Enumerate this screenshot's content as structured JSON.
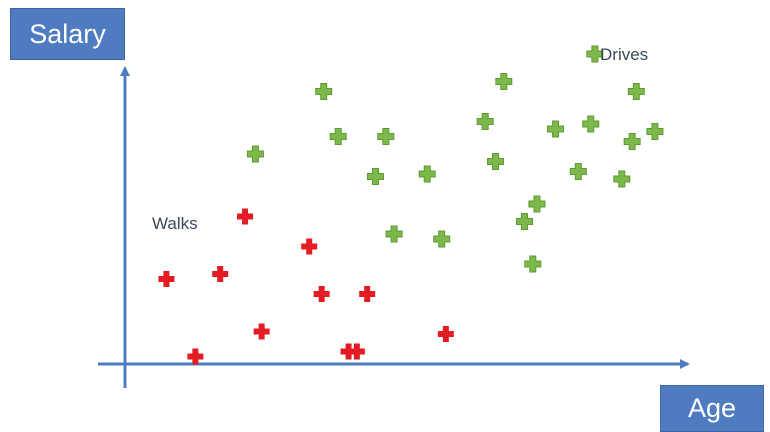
{
  "colors": {
    "axis": "#4f7cc0",
    "walks": "#e31b23",
    "drives": "#7cb84a",
    "drives_outline": "#5e9a33"
  },
  "labels": {
    "y_axis": "Salary",
    "x_axis": "Age",
    "walks": "Walks",
    "drives": "Drives"
  },
  "chart_data": {
    "type": "scatter",
    "xlabel": "Age",
    "ylabel": "Salary",
    "grid": false,
    "series": [
      {
        "name": "Walks",
        "color": "#e31b23",
        "marker": "plus",
        "points": [
          [
            2.0,
            3.4
          ],
          [
            4.6,
            3.6
          ],
          [
            6.6,
            1.3
          ],
          [
            5.8,
            5.9
          ],
          [
            8.9,
            4.7
          ],
          [
            9.5,
            2.8
          ],
          [
            11.7,
            2.8
          ],
          [
            15.5,
            1.2
          ],
          [
            10.8,
            0.5
          ],
          [
            3.4,
            0.3
          ],
          [
            11.2,
            0.5
          ]
        ]
      },
      {
        "name": "Drives",
        "color": "#7cb84a",
        "marker": "plus",
        "points": [
          [
            6.3,
            8.4
          ],
          [
            9.6,
            10.9
          ],
          [
            10.3,
            9.1
          ],
          [
            12.6,
            9.1
          ],
          [
            12.1,
            7.5
          ],
          [
            14.6,
            7.6
          ],
          [
            13.0,
            5.2
          ],
          [
            15.3,
            5.0
          ],
          [
            17.4,
            9.7
          ],
          [
            18.3,
            11.3
          ],
          [
            17.9,
            8.1
          ],
          [
            19.9,
            6.4
          ],
          [
            19.7,
            4.0
          ],
          [
            19.3,
            5.7
          ],
          [
            20.8,
            9.4
          ],
          [
            22.7,
            12.4
          ],
          [
            22.5,
            9.6
          ],
          [
            21.9,
            7.7
          ],
          [
            24.7,
            10.9
          ],
          [
            24.5,
            8.9
          ],
          [
            24.0,
            7.4
          ],
          [
            25.6,
            9.3
          ]
        ]
      }
    ]
  }
}
